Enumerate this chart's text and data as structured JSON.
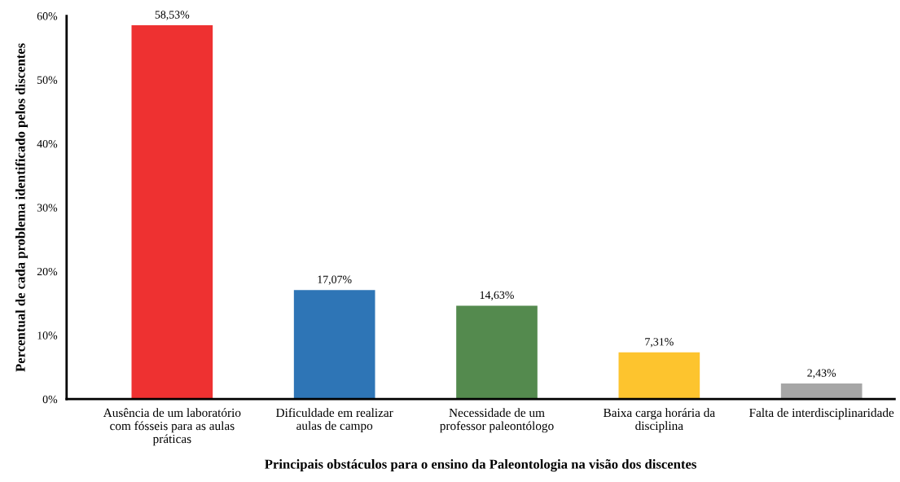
{
  "chart_data": {
    "type": "bar",
    "xlabel": "Principais obstáculos para o ensino da Paleontologia na visão dos discentes",
    "ylabel": "Percentual de cada problema identificado pelos discentes",
    "categories": [
      "Ausência de um laboratório\ncom fósseis para as aulas\npráticas",
      "Dificuldade em realizar\naulas de campo",
      "Necessidade de um\nprofessor paleontólogo",
      "Baixa carga horária da\ndisciplina",
      "Falta de interdisciplinaridade"
    ],
    "values": [
      58.53,
      17.07,
      14.63,
      7.31,
      2.43
    ],
    "colors": [
      "#ee3131",
      "#2e75b6",
      "#548a4e",
      "#fdc42e",
      "#a6a6a6"
    ],
    "value_labels": [
      "58,53%",
      "17,07%",
      "14,63%",
      "7,31%",
      "2,43%"
    ],
    "ylim": [
      0,
      60
    ],
    "yticks": [
      {
        "value": 0,
        "label": "0%"
      },
      {
        "value": 10,
        "label": "10%"
      },
      {
        "value": 20,
        "label": "20%"
      },
      {
        "value": 30,
        "label": "30%"
      },
      {
        "value": 40,
        "label": "40%"
      },
      {
        "value": 50,
        "label": "50%"
      },
      {
        "value": 60,
        "label": "60%"
      }
    ],
    "grid": false,
    "legend": false
  }
}
